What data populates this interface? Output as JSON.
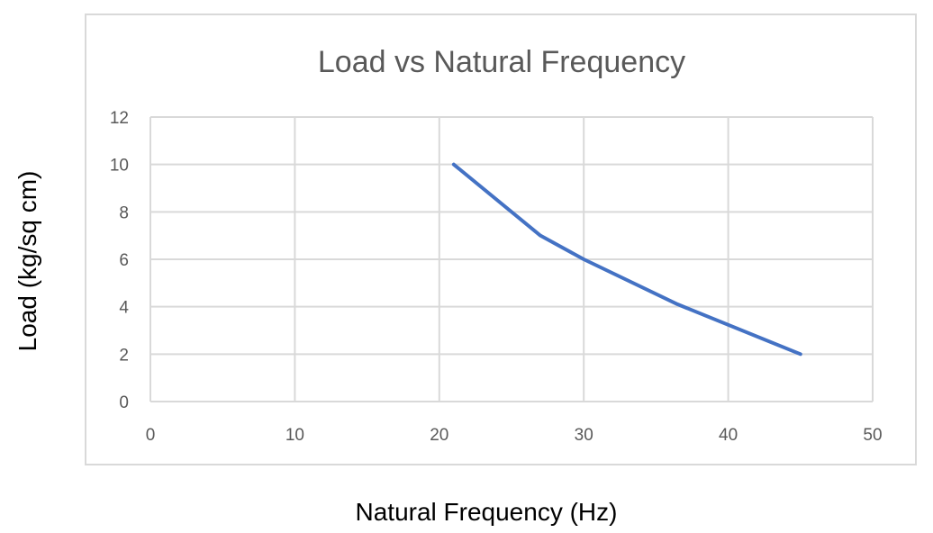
{
  "chart_data": {
    "type": "line",
    "title": "Load vs Natural Frequency",
    "xlabel": "Natural Frequency (Hz)",
    "ylabel": "Load (kg/sq cm)",
    "xlim": [
      0,
      50
    ],
    "ylim": [
      0,
      12
    ],
    "x_ticks": [
      "0",
      "10",
      "20",
      "30",
      "40",
      "50"
    ],
    "y_ticks": [
      "0",
      "2",
      "4",
      "6",
      "8",
      "10",
      "12"
    ],
    "grid": true,
    "legend": "none",
    "series": [
      {
        "name": "Load",
        "color": "#4472c4",
        "x": [
          21,
          27,
          30,
          36.5,
          45
        ],
        "y": [
          10,
          7,
          6,
          4.1,
          2
        ]
      }
    ]
  }
}
